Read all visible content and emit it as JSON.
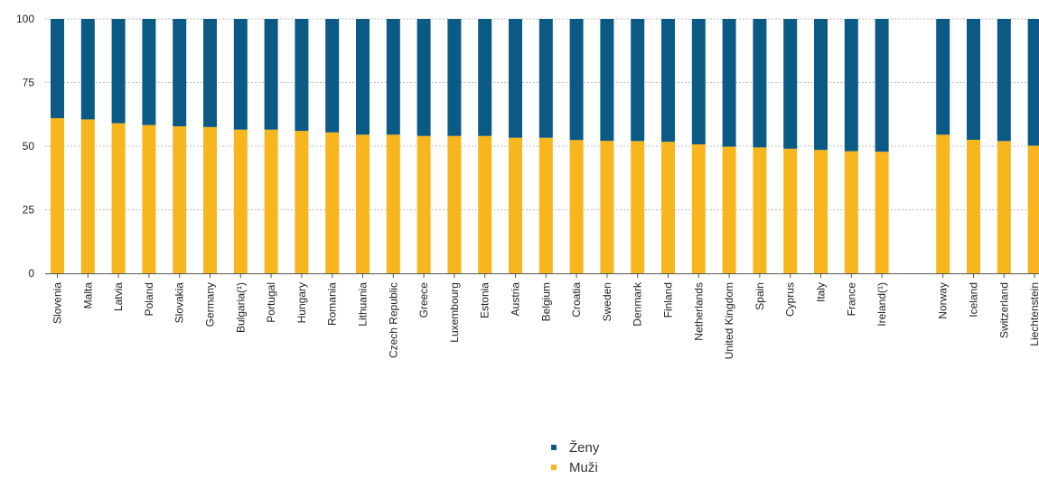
{
  "chart_data": {
    "type": "bar",
    "stacked": true,
    "categories": [
      "Slovenia",
      "Malta",
      "Latvia",
      "Poland",
      "Slovakia",
      "Germany",
      "Bulgaria(¹)",
      "Portugal",
      "Hungary",
      "Romania",
      "Lithuania",
      "Czech Republic",
      "Greece",
      "Luxembourg",
      "Estonia",
      "Austria",
      "Belgium",
      "Croatia",
      "Sweden",
      "Denmark",
      "Finland",
      "Netherlands",
      "United Kingdom",
      "Spain",
      "Cyprus",
      "Italy",
      "France",
      "Ireland(¹)",
      "Norway",
      "Iceland",
      "Switzerland",
      "Liechtenstein"
    ],
    "series": [
      {
        "name": "Muži",
        "color": "#F7B51E",
        "values": [
          61.0,
          60.5,
          59.0,
          58.3,
          57.8,
          57.5,
          56.5,
          56.5,
          56.0,
          55.4,
          54.5,
          54.5,
          54.0,
          54.0,
          54.0,
          53.3,
          53.3,
          52.4,
          52.1,
          52.0,
          51.7,
          50.7,
          49.8,
          49.5,
          49.0,
          48.5,
          48.0,
          47.8,
          54.5,
          52.5,
          52.0,
          50.2
        ]
      },
      {
        "name": "Ženy",
        "color": "#0B5A85",
        "values": [
          39.0,
          39.5,
          41.0,
          41.7,
          42.2,
          42.5,
          43.5,
          43.5,
          44.0,
          44.6,
          45.5,
          45.5,
          46.0,
          46.0,
          46.0,
          46.7,
          46.7,
          47.6,
          47.9,
          48.0,
          48.3,
          49.3,
          50.2,
          50.5,
          51.0,
          51.5,
          52.0,
          52.2,
          45.5,
          47.5,
          48.0,
          49.8
        ]
      }
    ],
    "ylim": [
      0,
      100
    ],
    "yticks": [
      "0",
      "25",
      "50",
      "75",
      "100"
    ],
    "grid": true,
    "group_gap_after_index": 27,
    "legend_position": "bottom"
  },
  "legend": {
    "items": [
      {
        "label": "Ženy",
        "color": "#0B5A85"
      },
      {
        "label": "Muži",
        "color": "#F7B51E"
      }
    ]
  }
}
